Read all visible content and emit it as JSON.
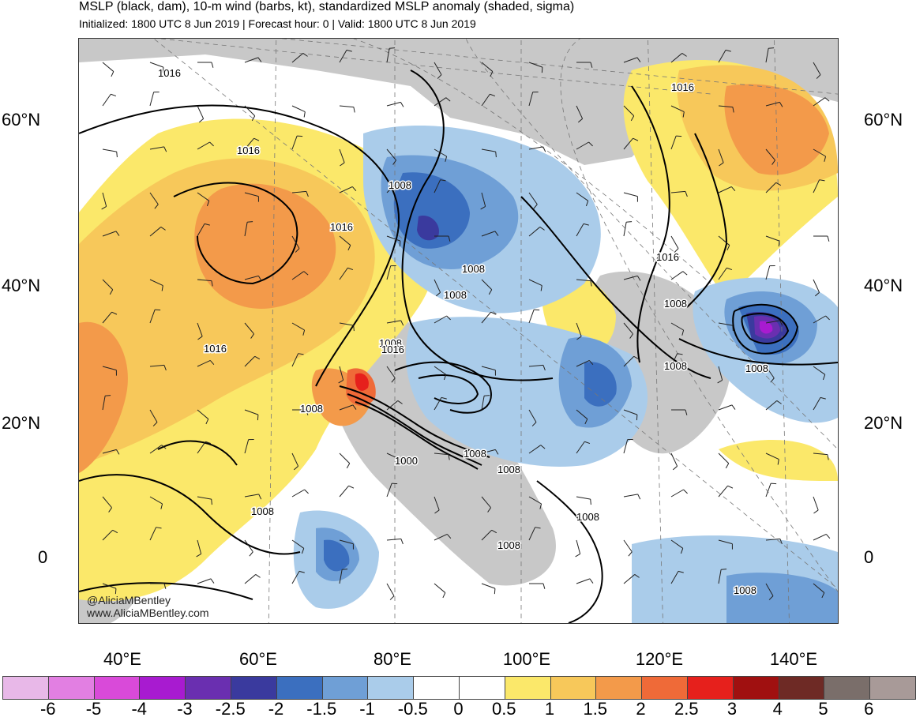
{
  "header": {
    "title": "MSLP (black, dam), 10-m wind (barbs, kt), standardized MSLP anomaly (shaded, sigma)",
    "subtitle": "Initialized: 1800 UTC 8 Jun 2019 | Forecast hour: 0 | Valid: 1800 UTC 8 Jun 2019"
  },
  "map": {
    "lat_labels_left": [
      "60°N",
      "40°N",
      "20°N",
      "0"
    ],
    "lat_labels_right": [
      "60°N",
      "40°N",
      "20°N",
      "0"
    ],
    "lon_labels": [
      "40°E",
      "60°E",
      "80°E",
      "100°E",
      "120°E",
      "140°E"
    ],
    "contour_labels": [
      "1016",
      "1016",
      "1016",
      "1008",
      "1016",
      "1008",
      "1008",
      "1008",
      "1016",
      "1016",
      "1008",
      "1008",
      "1008",
      "1008",
      "1000",
      "1008",
      "1008",
      "1008",
      "1008",
      "1008",
      "1008",
      "1016"
    ]
  },
  "credit": {
    "handle": "@AliciaMBentley",
    "website": "www.AliciaMBentley.com"
  },
  "colorbar": {
    "labels": [
      "-6",
      "-5",
      "-4",
      "-3",
      "-2.5",
      "-2",
      "-1.5",
      "-1",
      "-0.5",
      "0",
      "0.5",
      "1",
      "1.5",
      "2",
      "2.5",
      "3",
      "4",
      "5",
      "6"
    ],
    "colors": [
      "#e8b8e8",
      "#e27fe2",
      "#d94ad9",
      "#a81bd0",
      "#6a2fb0",
      "#3a3a9e",
      "#3b6fbf",
      "#6f9fd6",
      "#aaccea",
      "#ffffff",
      "#ffffff",
      "#fbe86a",
      "#f7c85a",
      "#f39a4a",
      "#ef6a38",
      "#e6201c",
      "#a01010",
      "#6e2a25",
      "#7a6e6a",
      "#a89a98"
    ],
    "anomaly_colors": {
      "land_gray": "#c8c8c8",
      "pos_05": "#fbe86a",
      "pos_1": "#f7c85a",
      "pos_15": "#f39a4a",
      "pos_2": "#ef6a38",
      "pos_25": "#e6201c",
      "neg_05": "#aaccea",
      "neg_1": "#6f9fd6",
      "neg_15": "#3b6fbf",
      "neg_2": "#3a3a9e",
      "neg_25": "#6a2fb0",
      "neg_3": "#a81bd0"
    }
  }
}
